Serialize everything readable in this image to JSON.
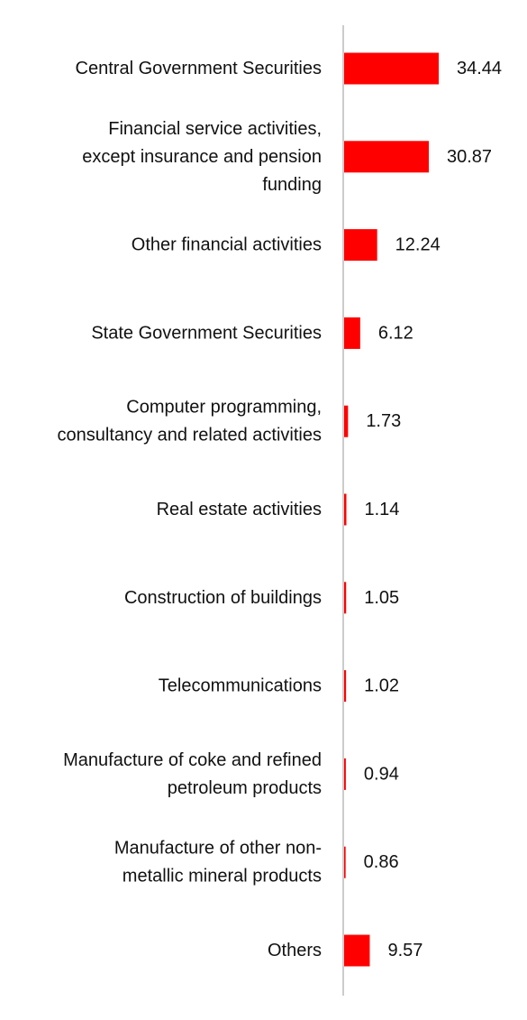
{
  "chart_data": {
    "type": "bar",
    "orientation": "horizontal",
    "categories": [
      "Central Government Securities",
      "Financial service activities, except insurance and pension funding",
      "Other financial activities",
      "State Government Securities",
      "Computer programming, consultancy and related activities",
      "Real estate activities",
      "Construction of buildings",
      "Telecommunications",
      "Manufacture of coke and refined petroleum products",
      "Manufacture of other non-metallic mineral products",
      "Others"
    ],
    "category_lines": [
      [
        "Central Government Securities"
      ],
      [
        "Financial service activities,",
        "except insurance and pension",
        "funding"
      ],
      [
        "Other financial activities"
      ],
      [
        "State Government Securities"
      ],
      [
        "Computer programming,",
        "consultancy and related activities"
      ],
      [
        "Real estate activities"
      ],
      [
        "Construction of buildings"
      ],
      [
        "Telecommunications"
      ],
      [
        "Manufacture of coke and refined",
        "petroleum products"
      ],
      [
        "Manufacture of other non-",
        "metallic mineral products"
      ],
      [
        "Others"
      ]
    ],
    "values": [
      34.44,
      30.87,
      12.24,
      6.12,
      1.73,
      1.14,
      1.05,
      1.02,
      0.94,
      0.86,
      9.57
    ],
    "value_labels": [
      "34.44",
      "30.87",
      "12.24",
      "6.12",
      "1.73",
      "1.14",
      "1.05",
      "1.02",
      "0.94",
      "0.86",
      "9.57"
    ],
    "bar_color": "#ff0000",
    "axis_color": "#cccccc",
    "text_color": "#111111",
    "title": "",
    "xlabel": "",
    "ylabel": "",
    "xlim": [
      0,
      36
    ],
    "grid": false,
    "legend": "none"
  }
}
